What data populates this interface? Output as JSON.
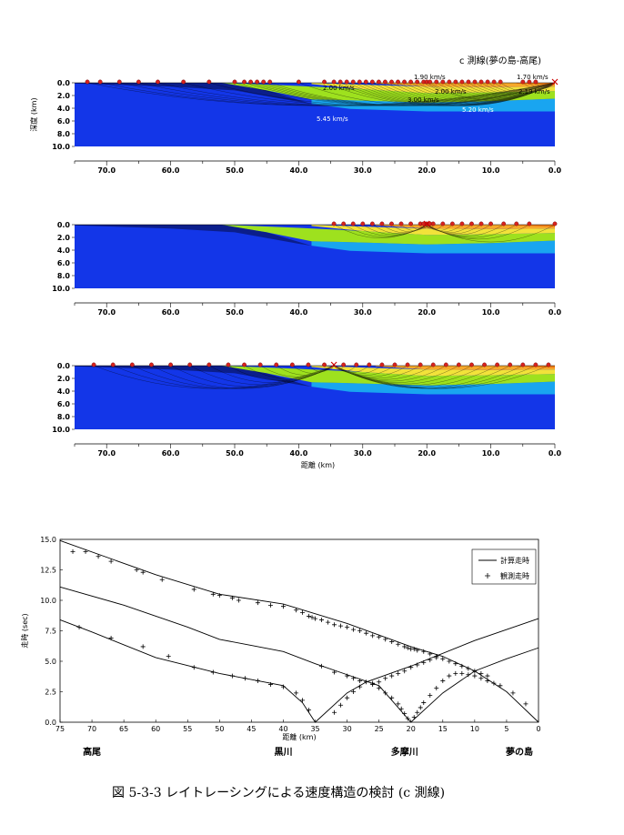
{
  "section_title": "c 測線(夢の島-高尾)",
  "caption": "図 5-3-3 レイトレーシングによる速度構造の検討 (c 測線)",
  "velocity_labels": [
    "1.90 km/s",
    "1.70 km/s",
    "2.00 km/s",
    "2.00 km/s",
    "2.19 km/s",
    "3.00 km/s",
    "5.20 km/s",
    "5.45 km/s"
  ],
  "colors": {
    "basement": "#1336e8",
    "layer5": "#19a5f0",
    "layer4": "#9ee11e",
    "layer3": "#f2e23a",
    "layer2": "#f6a82a",
    "layer1": "#ef7c16",
    "station": "#d8231e",
    "ray": "#000000"
  },
  "chart_data": [
    {
      "type": "area",
      "panel": 1,
      "ylabel": "深度 (km)",
      "xlabel": "",
      "depth_ticks": [
        "0.0",
        "2.0",
        "4.0",
        "6.0",
        "8.0",
        "10.0"
      ],
      "distance_ticks": [
        "70.0",
        "60.0",
        "50.0",
        "40.0",
        "30.0",
        "20.0",
        "10.0",
        "0.0"
      ],
      "xlim": [
        75,
        0
      ],
      "ylim": [
        0,
        10
      ],
      "source_km": 0,
      "stations_km": [
        73,
        71,
        68,
        65,
        62,
        58,
        54,
        50,
        48.5,
        47.5,
        46.5,
        45.5,
        44.5,
        40,
        36,
        34.5,
        33.5,
        32.5,
        31.5,
        30.5,
        29.5,
        28.5,
        27.5,
        26.5,
        25.5,
        24.5,
        23.5,
        22.5,
        21.5,
        20.5,
        20,
        19.5,
        18.5,
        17.5,
        16.5,
        15.5,
        14.5,
        13.5,
        12.5,
        11.5,
        10.5,
        9.5,
        8.5,
        5,
        4,
        3
      ]
    },
    {
      "type": "area",
      "panel": 2,
      "depth_ticks": [
        "0.0",
        "2.0",
        "4.0",
        "6.0",
        "8.0",
        "10.0"
      ],
      "distance_ticks": [
        "70.0",
        "60.0",
        "50.0",
        "40.0",
        "30.0",
        "20.0",
        "10.0",
        "0.0"
      ],
      "xlim": [
        75,
        0
      ],
      "ylim": [
        0,
        10
      ],
      "source_km": 20,
      "stations_km": [
        34.5,
        33,
        31.5,
        30,
        28.5,
        27,
        25.5,
        24,
        22.5,
        21,
        20.5,
        20,
        19.5,
        19,
        17.5,
        16,
        14.5,
        13,
        11.5,
        10,
        8,
        6,
        4,
        0
      ]
    },
    {
      "type": "area",
      "panel": 3,
      "xlabel": "距離 (km)",
      "depth_ticks": [
        "0.0",
        "2.0",
        "4.0",
        "6.0",
        "8.0",
        "10.0"
      ],
      "distance_ticks": [
        "70.0",
        "60.0",
        "50.0",
        "40.0",
        "30.0",
        "20.0",
        "10.0",
        "0.0"
      ],
      "xlim": [
        75,
        0
      ],
      "ylim": [
        0,
        10
      ],
      "source_km": 34.5,
      "stations_km": [
        72,
        69,
        66,
        63,
        60,
        57,
        54,
        51,
        48.5,
        46,
        43.5,
        41,
        38.5,
        36,
        33,
        31,
        29,
        27,
        25,
        23,
        21,
        19,
        17,
        15,
        13,
        11,
        9,
        7,
        5,
        3,
        1
      ]
    },
    {
      "type": "line",
      "title": "",
      "xlabel": "距離 (km)",
      "ylabel": "走時 (sec)",
      "xlim": [
        75,
        0
      ],
      "ylim": [
        0,
        15
      ],
      "x_ticks": [
        75,
        70,
        65,
        60,
        55,
        50,
        45,
        40,
        35,
        30,
        25,
        20,
        15,
        10,
        5,
        0
      ],
      "y_ticks": [
        "0.0",
        "2.5",
        "5.0",
        "7.5",
        "10.0",
        "12.5",
        "15.0"
      ],
      "grid": false,
      "legend": {
        "position": "top-right",
        "entries": [
          "計算走時",
          "観測走時"
        ]
      },
      "locations": [
        {
          "name": "高尾",
          "km": 70
        },
        {
          "name": "黒川",
          "km": 40
        },
        {
          "name": "多摩川",
          "km": 21
        },
        {
          "name": "夢の島",
          "km": 3
        }
      ],
      "series": [
        {
          "name": "計算走時",
          "style": "line",
          "x": [
            75,
            60,
            50,
            40,
            30,
            20,
            15,
            10,
            5,
            0
          ],
          "y": [
            14.9,
            12.1,
            10.5,
            9.7,
            8.1,
            6.2,
            5.4,
            4.2,
            2.5,
            0.0
          ]
        },
        {
          "name": "計算走時",
          "style": "line",
          "x": [
            75,
            65,
            55,
            50,
            45,
            40,
            35,
            30,
            25,
            20,
            15,
            10,
            5,
            0
          ],
          "y": [
            11.1,
            9.6,
            7.8,
            6.8,
            6.3,
            5.8,
            4.8,
            3.9,
            3.0,
            0.0,
            2.4,
            4.2,
            5.2,
            6.1
          ]
        },
        {
          "name": "計算走時",
          "style": "line",
          "x": [
            75,
            70,
            60,
            50,
            40,
            37,
            35,
            30,
            27,
            20,
            10,
            0
          ],
          "y": [
            8.4,
            7.4,
            5.3,
            4.0,
            3.0,
            1.6,
            0.0,
            2.4,
            3.3,
            4.6,
            6.7,
            8.5
          ]
        },
        {
          "name": "観測走時",
          "style": "marker",
          "x": [
            73,
            71,
            69,
            67,
            63,
            62,
            59,
            54,
            51,
            50,
            48,
            47,
            44,
            42,
            40,
            38,
            37,
            36,
            35.5,
            35,
            34,
            33,
            32,
            31,
            30,
            29,
            28,
            27,
            26,
            25,
            24,
            23,
            22,
            21,
            20.5,
            20,
            19.5,
            19,
            18,
            17,
            16,
            15,
            14,
            13,
            12,
            11,
            10,
            9,
            8
          ],
          "y": [
            14.0,
            14.0,
            13.6,
            13.2,
            12.5,
            12.3,
            11.7,
            10.9,
            10.5,
            10.4,
            10.2,
            10.0,
            9.8,
            9.6,
            9.5,
            9.2,
            9.0,
            8.7,
            8.6,
            8.5,
            8.4,
            8.2,
            8.0,
            7.9,
            7.8,
            7.6,
            7.5,
            7.3,
            7.1,
            7.0,
            6.8,
            6.6,
            6.4,
            6.2,
            6.1,
            6.0,
            6.0,
            5.9,
            5.8,
            5.6,
            5.4,
            5.2,
            5.0,
            4.8,
            4.6,
            4.4,
            4.2,
            4.0,
            3.8
          ]
        },
        {
          "name": "観測走時",
          "style": "marker",
          "x": [
            34,
            32,
            30,
            29,
            28,
            27,
            26,
            25,
            24,
            23,
            22,
            21.5,
            21,
            20.5,
            19.5,
            19,
            18.5,
            18,
            17,
            16,
            15,
            14,
            13,
            12,
            11,
            10,
            9,
            8,
            7,
            6,
            4,
            2
          ],
          "y": [
            4.6,
            4.1,
            3.8,
            3.6,
            3.4,
            3.3,
            3.1,
            2.8,
            2.4,
            2.0,
            1.5,
            1.1,
            0.7,
            0.3,
            0.4,
            0.8,
            1.2,
            1.6,
            2.2,
            2.8,
            3.4,
            3.8,
            4.0,
            4.0,
            3.9,
            3.8,
            3.6,
            3.4,
            3.2,
            3.0,
            2.4,
            1.5
          ]
        },
        {
          "name": "観測走時",
          "style": "marker",
          "x": [
            72,
            67,
            62,
            58,
            54,
            51,
            48,
            46,
            44,
            42,
            40,
            38,
            37,
            36,
            32,
            31,
            30,
            29,
            28,
            26,
            25,
            24,
            23,
            22,
            21,
            20,
            19,
            18,
            17,
            16
          ],
          "y": [
            7.8,
            6.9,
            6.2,
            5.4,
            4.5,
            4.1,
            3.8,
            3.6,
            3.4,
            3.1,
            2.9,
            2.4,
            1.8,
            1.0,
            0.8,
            1.4,
            2.0,
            2.5,
            2.9,
            3.2,
            3.3,
            3.6,
            3.8,
            4.0,
            4.2,
            4.5,
            4.7,
            4.9,
            5.1,
            5.3
          ]
        }
      ]
    }
  ]
}
